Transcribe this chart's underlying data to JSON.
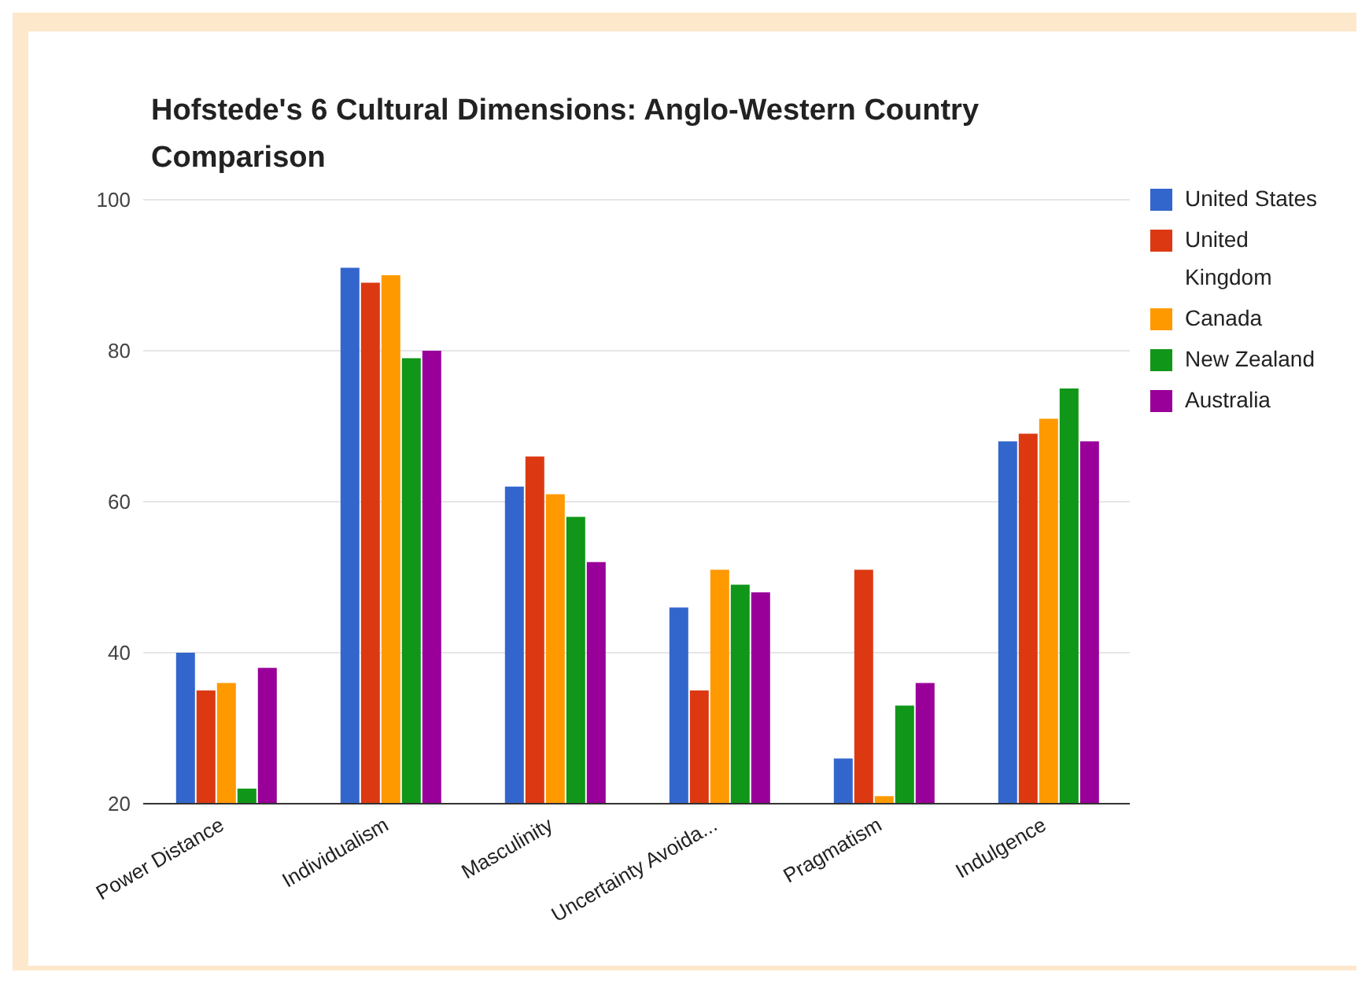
{
  "chart_data": {
    "type": "bar",
    "title": "Hofstede's 6 Cultural Dimensions: Anglo-Western Country Comparison",
    "categories": [
      "Power Distance",
      "Individualism",
      "Masculinity",
      "Uncertainty Avoida...",
      "Pragmatism",
      "Indulgence"
    ],
    "series": [
      {
        "name": "United States",
        "color": "#3366cc",
        "values": [
          40,
          91,
          62,
          46,
          26,
          68
        ]
      },
      {
        "name": "United Kingdom",
        "color": "#dc3912",
        "values": [
          35,
          89,
          66,
          35,
          51,
          69
        ]
      },
      {
        "name": "Canada",
        "color": "#ff9900",
        "values": [
          36,
          90,
          61,
          51,
          21,
          71
        ]
      },
      {
        "name": "New Zealand",
        "color": "#109618",
        "values": [
          22,
          79,
          58,
          49,
          33,
          75
        ]
      },
      {
        "name": "Australia",
        "color": "#990099",
        "values": [
          38,
          80,
          52,
          48,
          36,
          68
        ]
      }
    ],
    "ylim": [
      20,
      100
    ],
    "yticks": [
      20,
      40,
      60,
      80,
      100
    ],
    "grid": "y",
    "legend": "top right"
  }
}
